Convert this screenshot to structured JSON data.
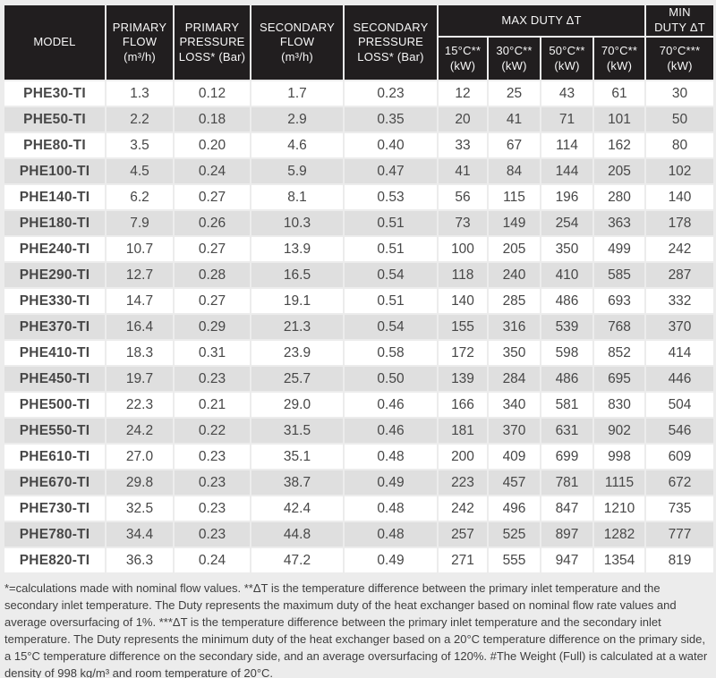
{
  "table": {
    "header": {
      "columns": [
        {
          "label": "MODEL"
        },
        {
          "label": "PRIMARY\nFLOW\n(m³/h)"
        },
        {
          "label": "PRIMARY\nPRESSURE\nLOSS* (Bar)"
        },
        {
          "label": "SECONDARY\nFLOW\n(m³/h)"
        },
        {
          "label": "SECONDARY\nPRESSURE\nLOSS* (Bar)"
        }
      ],
      "groups": [
        {
          "label": "MAX DUTY ΔT",
          "sub": [
            "15°C**\n(kW)",
            "30°C**\n(kW)",
            "50°C**\n(kW)",
            "70°C**\n(kW)"
          ]
        },
        {
          "label": "MIN\nDUTY ΔT",
          "sub": [
            "70°C***\n(kW)"
          ]
        }
      ]
    },
    "rows": [
      [
        "PHE30-TI",
        "1.3",
        "0.12",
        "1.7",
        "0.23",
        "12",
        "25",
        "43",
        "61",
        "30"
      ],
      [
        "PHE50-TI",
        "2.2",
        "0.18",
        "2.9",
        "0.35",
        "20",
        "41",
        "71",
        "101",
        "50"
      ],
      [
        "PHE80-TI",
        "3.5",
        "0.20",
        "4.6",
        "0.40",
        "33",
        "67",
        "114",
        "162",
        "80"
      ],
      [
        "PHE100-TI",
        "4.5",
        "0.24",
        "5.9",
        "0.47",
        "41",
        "84",
        "144",
        "205",
        "102"
      ],
      [
        "PHE140-TI",
        "6.2",
        "0.27",
        "8.1",
        "0.53",
        "56",
        "115",
        "196",
        "280",
        "140"
      ],
      [
        "PHE180-TI",
        "7.9",
        "0.26",
        "10.3",
        "0.51",
        "73",
        "149",
        "254",
        "363",
        "178"
      ],
      [
        "PHE240-TI",
        "10.7",
        "0.27",
        "13.9",
        "0.51",
        "100",
        "205",
        "350",
        "499",
        "242"
      ],
      [
        "PHE290-TI",
        "12.7",
        "0.28",
        "16.5",
        "0.54",
        "118",
        "240",
        "410",
        "585",
        "287"
      ],
      [
        "PHE330-TI",
        "14.7",
        "0.27",
        "19.1",
        "0.51",
        "140",
        "285",
        "486",
        "693",
        "332"
      ],
      [
        "PHE370-TI",
        "16.4",
        "0.29",
        "21.3",
        "0.54",
        "155",
        "316",
        "539",
        "768",
        "370"
      ],
      [
        "PHE410-TI",
        "18.3",
        "0.31",
        "23.9",
        "0.58",
        "172",
        "350",
        "598",
        "852",
        "414"
      ],
      [
        "PHE450-TI",
        "19.7",
        "0.23",
        "25.7",
        "0.50",
        "139",
        "284",
        "486",
        "695",
        "446"
      ],
      [
        "PHE500-TI",
        "22.3",
        "0.21",
        "29.0",
        "0.46",
        "166",
        "340",
        "581",
        "830",
        "504"
      ],
      [
        "PHE550-TI",
        "24.2",
        "0.22",
        "31.5",
        "0.46",
        "181",
        "370",
        "631",
        "902",
        "546"
      ],
      [
        "PHE610-TI",
        "27.0",
        "0.23",
        "35.1",
        "0.48",
        "200",
        "409",
        "699",
        "998",
        "609"
      ],
      [
        "PHE670-TI",
        "29.8",
        "0.23",
        "38.7",
        "0.49",
        "223",
        "457",
        "781",
        "1115",
        "672"
      ],
      [
        "PHE730-TI",
        "32.5",
        "0.23",
        "42.4",
        "0.48",
        "242",
        "496",
        "847",
        "1210",
        "735"
      ],
      [
        "PHE780-TI",
        "34.4",
        "0.23",
        "44.8",
        "0.48",
        "257",
        "525",
        "897",
        "1282",
        "777"
      ],
      [
        "PHE820-TI",
        "36.3",
        "0.24",
        "47.2",
        "0.49",
        "271",
        "555",
        "947",
        "1354",
        "819"
      ]
    ]
  },
  "footnote": "*=calculations made with nominal flow values. **ΔT is the temperature difference between the primary inlet temperature and the secondary inlet temperature. The Duty represents the maximum duty of the heat exchanger based on nominal flow rate values and average oversurfacing of 1%. ***ΔT is the temperature difference between the primary inlet temperature and the secondary inlet temperature. The Duty represents the minimum duty of the heat exchanger based on a 20°C temperature difference on the primary side, a 15°C temperature difference on the secondary side, and an average oversurfacing of 120%. #The Weight (Full) is calculated at a water density of 998 kg/m³ and room temperature of 20°C.",
  "colors": {
    "header_bg": "#211e1f",
    "header_text": "#f7f7f7",
    "row_stripe": "#dfdfdf",
    "row_white": "#ffffff",
    "page_bg": "#ececec",
    "body_text": "#474747",
    "model_text": "#0d0d0d"
  }
}
